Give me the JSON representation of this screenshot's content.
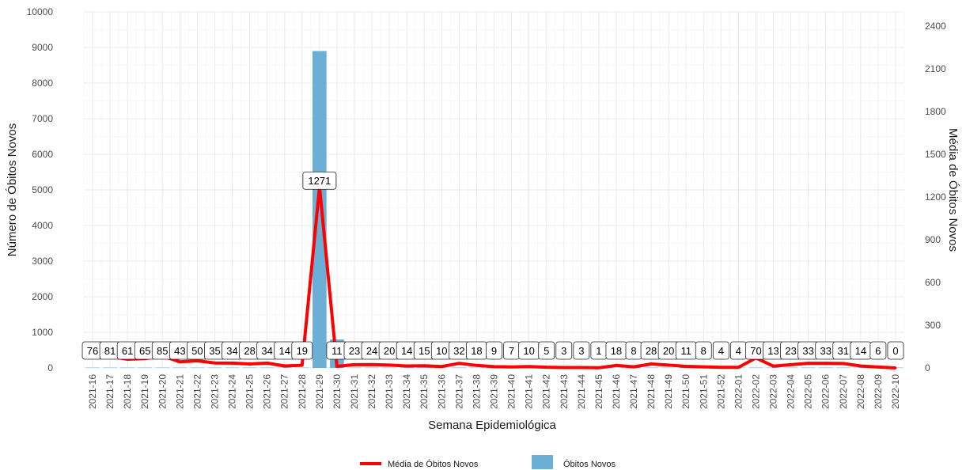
{
  "chart_data": {
    "type": "bar+line",
    "title": "",
    "xlabel": "Semana Epidemiológica",
    "ylabel": "Número de Óbitos Novos",
    "y2label": "Média de Óbitos Novos",
    "ylim": [
      0,
      10000
    ],
    "y2lim": [
      0,
      2500
    ],
    "y_ticks": [
      0,
      1000,
      2000,
      3000,
      4000,
      5000,
      6000,
      7000,
      8000,
      9000,
      10000
    ],
    "y2_ticks": [
      0,
      300,
      600,
      900,
      1200,
      1500,
      1800,
      2100,
      2400
    ],
    "grid": true,
    "legend_position": "bottom",
    "categories": [
      "2021-16",
      "2021-17",
      "2021-18",
      "2021-19",
      "2021-20",
      "2021-21",
      "2021-22",
      "2021-23",
      "2021-24",
      "2021-25",
      "2021-26",
      "2021-27",
      "2021-28",
      "2021-29",
      "2021-30",
      "2021-31",
      "2021-32",
      "2021-33",
      "2021-34",
      "2021-35",
      "2021-36",
      "2021-37",
      "2021-38",
      "2021-39",
      "2021-40",
      "2021-41",
      "2021-42",
      "2021-43",
      "2021-44",
      "2021-45",
      "2021-46",
      "2021-47",
      "2021-48",
      "2021-49",
      "2021-50",
      "2021-51",
      "2021-52",
      "2022-01",
      "2022-02",
      "2022-03",
      "2022-04",
      "2022-05",
      "2022-06",
      "2022-07",
      "2022-08",
      "2022-09",
      "2022-10"
    ],
    "series": [
      {
        "name": "Óbitos Novos",
        "kind": "bar",
        "color": "#6baed6",
        "values": [
          10,
          10,
          10,
          10,
          10,
          10,
          10,
          10,
          10,
          10,
          10,
          10,
          10,
          8900,
          800,
          10,
          10,
          10,
          10,
          10,
          10,
          10,
          10,
          10,
          10,
          10,
          10,
          10,
          10,
          10,
          10,
          10,
          10,
          10,
          10,
          10,
          10,
          10,
          10,
          10,
          10,
          10,
          10,
          10,
          10,
          10,
          10
        ]
      },
      {
        "name": "Média de Óbitos Novos",
        "kind": "line",
        "axis": "right",
        "color": "#ff0000",
        "values": [
          76,
          81,
          61,
          65,
          85,
          43,
          50,
          35,
          34,
          28,
          34,
          14,
          19,
          1271,
          11,
          23,
          24,
          20,
          14,
          15,
          10,
          32,
          18,
          9,
          7,
          10,
          5,
          3,
          3,
          1,
          18,
          8,
          28,
          20,
          11,
          8,
          4,
          4,
          70,
          13,
          23,
          33,
          33,
          31,
          14,
          6,
          0
        ],
        "labels": [
          "76",
          "81",
          "61",
          "65",
          "85",
          "43",
          "50",
          "35",
          "34",
          "28",
          "34",
          "14",
          "19",
          "1271",
          "11",
          "23",
          "24",
          "20",
          "14",
          "15",
          "10",
          "32",
          "18",
          "9",
          "7",
          "10",
          "5",
          "3",
          "3",
          "1",
          "18",
          "8",
          "28",
          "20",
          "11",
          "8",
          "4",
          "4",
          "70",
          "13",
          "23",
          "33",
          "33",
          "31",
          "14",
          "6",
          "0"
        ]
      }
    ]
  },
  "legend": {
    "line_label": "Média de Óbitos Novos",
    "bar_label": "Óbitos Novos"
  }
}
